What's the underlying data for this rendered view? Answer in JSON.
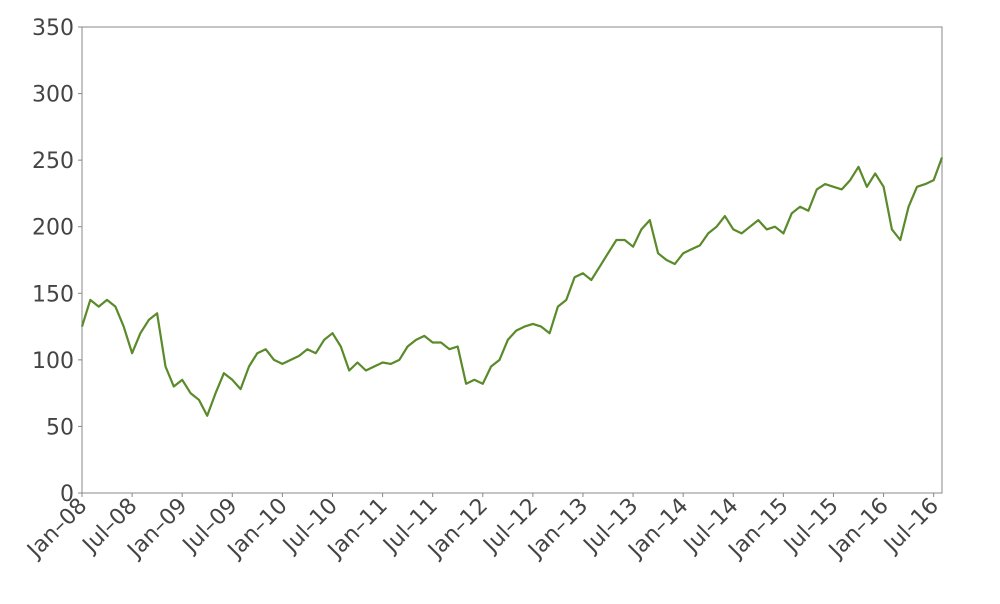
{
  "chart_data": {
    "type": "line",
    "x": [
      "2008-01",
      "2008-02",
      "2008-03",
      "2008-04",
      "2008-05",
      "2008-06",
      "2008-07",
      "2008-08",
      "2008-09",
      "2008-10",
      "2008-11",
      "2008-12",
      "2009-01",
      "2009-02",
      "2009-03",
      "2009-04",
      "2009-05",
      "2009-06",
      "2009-07",
      "2009-08",
      "2009-09",
      "2009-10",
      "2009-11",
      "2009-12",
      "2010-01",
      "2010-02",
      "2010-03",
      "2010-04",
      "2010-05",
      "2010-06",
      "2010-07",
      "2010-08",
      "2010-09",
      "2010-10",
      "2010-11",
      "2010-12",
      "2011-01",
      "2011-02",
      "2011-03",
      "2011-04",
      "2011-05",
      "2011-06",
      "2011-07",
      "2011-08",
      "2011-09",
      "2011-10",
      "2011-11",
      "2011-12",
      "2012-01",
      "2012-02",
      "2012-03",
      "2012-04",
      "2012-05",
      "2012-06",
      "2012-07",
      "2012-08",
      "2012-09",
      "2012-10",
      "2012-11",
      "2012-12",
      "2013-01",
      "2013-02",
      "2013-03",
      "2013-04",
      "2013-05",
      "2013-06",
      "2013-07",
      "2013-08",
      "2013-09",
      "2013-10",
      "2013-11",
      "2013-12",
      "2014-01",
      "2014-02",
      "2014-03",
      "2014-04",
      "2014-05",
      "2014-06",
      "2014-07",
      "2014-08",
      "2014-09",
      "2014-10",
      "2014-11",
      "2014-12",
      "2015-01",
      "2015-02",
      "2015-03",
      "2015-04",
      "2015-05",
      "2015-06",
      "2015-07",
      "2015-08",
      "2015-09",
      "2015-10",
      "2015-11",
      "2015-12",
      "2016-01",
      "2016-02",
      "2016-03",
      "2016-04",
      "2016-05",
      "2016-06",
      "2016-07",
      "2016-08"
    ],
    "series": [
      {
        "color": "#5a8a2a",
        "values": [
          125,
          145,
          140,
          145,
          140,
          125,
          105,
          120,
          130,
          135,
          95,
          80,
          85,
          75,
          70,
          58,
          75,
          90,
          85,
          78,
          95,
          105,
          108,
          100,
          97,
          100,
          103,
          108,
          105,
          115,
          120,
          110,
          92,
          98,
          92,
          95,
          98,
          97,
          100,
          110,
          115,
          118,
          113,
          113,
          108,
          110,
          82,
          85,
          82,
          95,
          100,
          115,
          122,
          125,
          127,
          125,
          120,
          140,
          145,
          162,
          165,
          160,
          170,
          180,
          190,
          190,
          185,
          198,
          205,
          180,
          175,
          172,
          180,
          183,
          186,
          195,
          200,
          208,
          198,
          195,
          200,
          205,
          198,
          200,
          195,
          210,
          215,
          212,
          228,
          232,
          230,
          228,
          235,
          245,
          230,
          240,
          230,
          198,
          190,
          215,
          230,
          232,
          235,
          252
        ]
      }
    ],
    "xlim": [
      "2008-01",
      "2016-08"
    ],
    "xticks": [
      {
        "value": "2008-01",
        "label": "Jan–08"
      },
      {
        "value": "2008-07",
        "label": "Jul–08"
      },
      {
        "value": "2009-01",
        "label": "Jan–09"
      },
      {
        "value": "2009-07",
        "label": "Jul–09"
      },
      {
        "value": "2010-01",
        "label": "Jan–10"
      },
      {
        "value": "2010-07",
        "label": "Jul–10"
      },
      {
        "value": "2011-01",
        "label": "Jan–11"
      },
      {
        "value": "2011-07",
        "label": "Jul–11"
      },
      {
        "value": "2012-01",
        "label": "Jan–12"
      },
      {
        "value": "2012-07",
        "label": "Jul–12"
      },
      {
        "value": "2013-01",
        "label": "Jan–13"
      },
      {
        "value": "2013-07",
        "label": "Jul–13"
      },
      {
        "value": "2014-01",
        "label": "Jan–14"
      },
      {
        "value": "2014-07",
        "label": "Jul–14"
      },
      {
        "value": "2015-01",
        "label": "Jan–15"
      },
      {
        "value": "2015-07",
        "label": "Jul–15"
      },
      {
        "value": "2016-01",
        "label": "Jan–16"
      },
      {
        "value": "2016-07",
        "label": "Jul–16"
      }
    ],
    "ylim": [
      0,
      350
    ],
    "yticks": [
      0,
      50,
      100,
      150,
      200,
      250,
      300,
      350
    ]
  }
}
